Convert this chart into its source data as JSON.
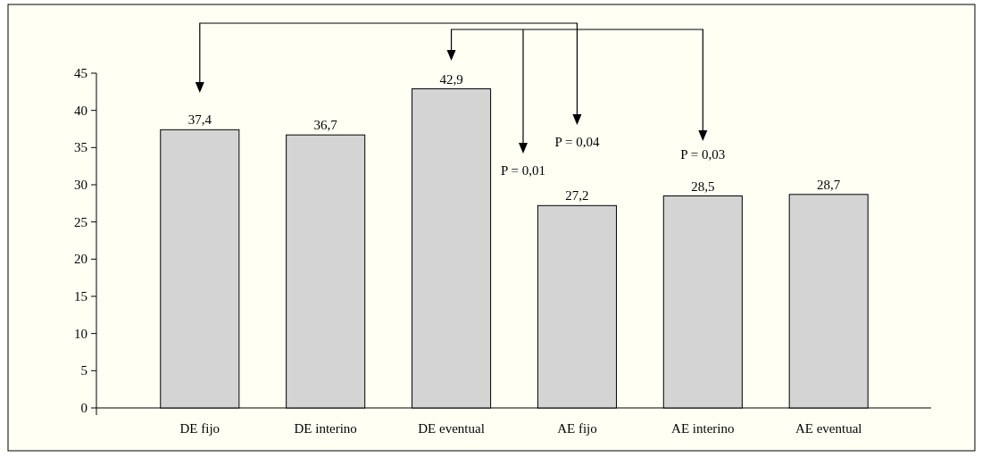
{
  "chart_data": {
    "type": "bar",
    "categories": [
      "DE fijo",
      "DE interino",
      "DE eventual",
      "AE fijo",
      "AE interino",
      "AE eventual"
    ],
    "values": [
      37.4,
      36.7,
      42.9,
      27.2,
      28.5,
      28.7
    ],
    "color": "#d4d4d4",
    "value_labels": [
      "37,4",
      "36,7",
      "42,9",
      "27,2",
      "28,5",
      "28,7"
    ],
    "ylim": [
      0,
      45
    ],
    "yticks": [
      0,
      5,
      10,
      15,
      20,
      25,
      30,
      35,
      40,
      45
    ],
    "annotations": [
      "P = 0,04",
      "P = 0,01",
      "P = 0,03"
    ]
  }
}
